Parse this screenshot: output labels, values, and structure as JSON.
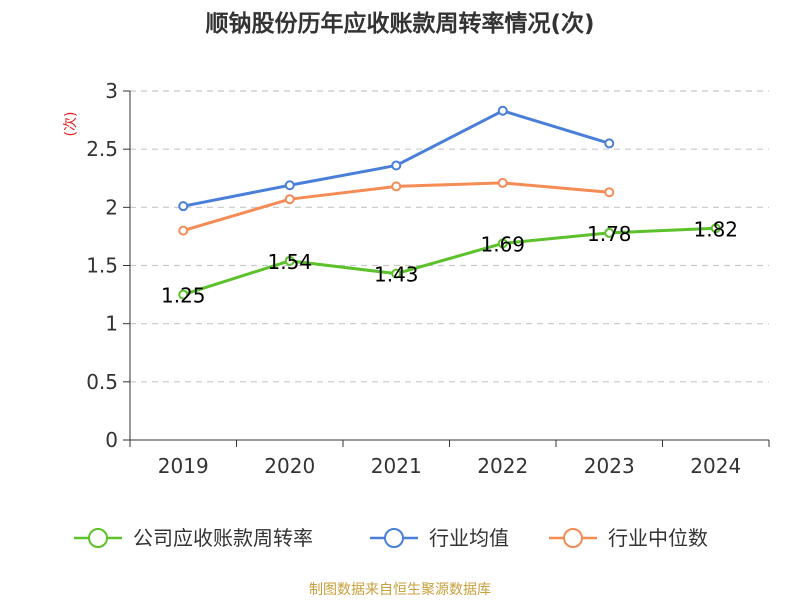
{
  "chart_data": {
    "type": "line",
    "title": "顺钠股份历年应收账款周转率情况(次)",
    "ylabel": "(次)",
    "xlabel": "",
    "categories": [
      "2019",
      "2020",
      "2021",
      "2022",
      "2023",
      "2024"
    ],
    "ylim": [
      0,
      3
    ],
    "yticks": [
      0,
      0.5,
      1,
      1.5,
      2,
      2.5,
      3
    ],
    "ytick_labels": [
      "0",
      "0.5",
      "1",
      "1.5",
      "2",
      "2.5",
      "3"
    ],
    "grid": true,
    "legend_position": "bottom",
    "series": [
      {
        "name": "公司应收账款周转率",
        "color": "#5cc12a",
        "values": [
          1.25,
          1.54,
          1.43,
          1.69,
          1.78,
          1.82
        ],
        "labels": [
          "1.25",
          "1.54",
          "1.43",
          "1.69",
          "1.78",
          "1.82"
        ]
      },
      {
        "name": "行业均值",
        "color": "#4a7fd9",
        "values": [
          2.01,
          2.19,
          2.36,
          2.83,
          2.55,
          null
        ]
      },
      {
        "name": "行业中位数",
        "color": "#f58b55",
        "values": [
          1.8,
          2.07,
          2.18,
          2.21,
          2.13,
          null
        ]
      }
    ],
    "source": "制图数据来自恒生聚源数据库",
    "unit_color": "#e02020"
  }
}
